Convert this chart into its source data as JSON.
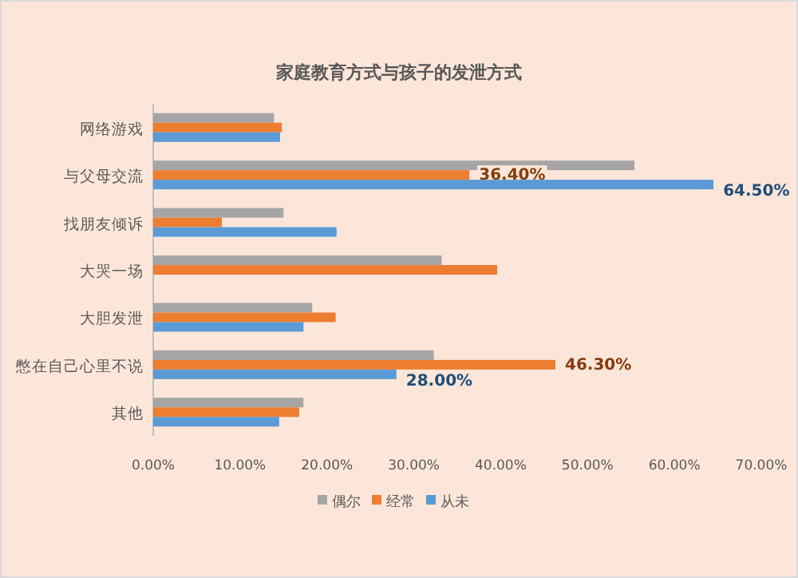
{
  "chart_data": {
    "type": "bar",
    "orientation": "horizontal",
    "title": "家庭教育方式与孩子的发泄方式",
    "categories": [
      "网络游戏",
      "与父母交流",
      "找朋友倾诉",
      "大哭一场",
      "大胆发泄",
      "憋在自己心里不说",
      "其他"
    ],
    "series": [
      {
        "name": "偶尔",
        "color": "#a5a5a5",
        "values": [
          13.9,
          55.4,
          15.0,
          33.2,
          18.3,
          32.3,
          17.3
        ]
      },
      {
        "name": "经常",
        "color": "#ed7d31",
        "values": [
          14.8,
          36.4,
          7.9,
          39.6,
          21.0,
          46.3,
          16.8
        ],
        "value_labels": [
          null,
          "36.40%",
          null,
          null,
          null,
          "46.30%",
          null
        ]
      },
      {
        "name": "从未",
        "color": "#5b9bd5",
        "values": [
          14.6,
          64.5,
          21.1,
          null,
          17.3,
          28.0,
          14.5
        ],
        "value_labels": [
          null,
          "64.50%",
          null,
          null,
          null,
          "28.00%",
          null
        ]
      }
    ],
    "xlim": [
      0,
      70
    ],
    "xticks": [
      {
        "value": 0,
        "label": "0.00%"
      },
      {
        "value": 10,
        "label": "10.00%"
      },
      {
        "value": 20,
        "label": "20.00%"
      },
      {
        "value": 30,
        "label": "30.00%"
      },
      {
        "value": 40,
        "label": "40.00%"
      },
      {
        "value": 50,
        "label": "50.00%"
      },
      {
        "value": 60,
        "label": "60.00%"
      },
      {
        "value": 70,
        "label": "70.00%"
      }
    ],
    "legend": "bottom"
  }
}
